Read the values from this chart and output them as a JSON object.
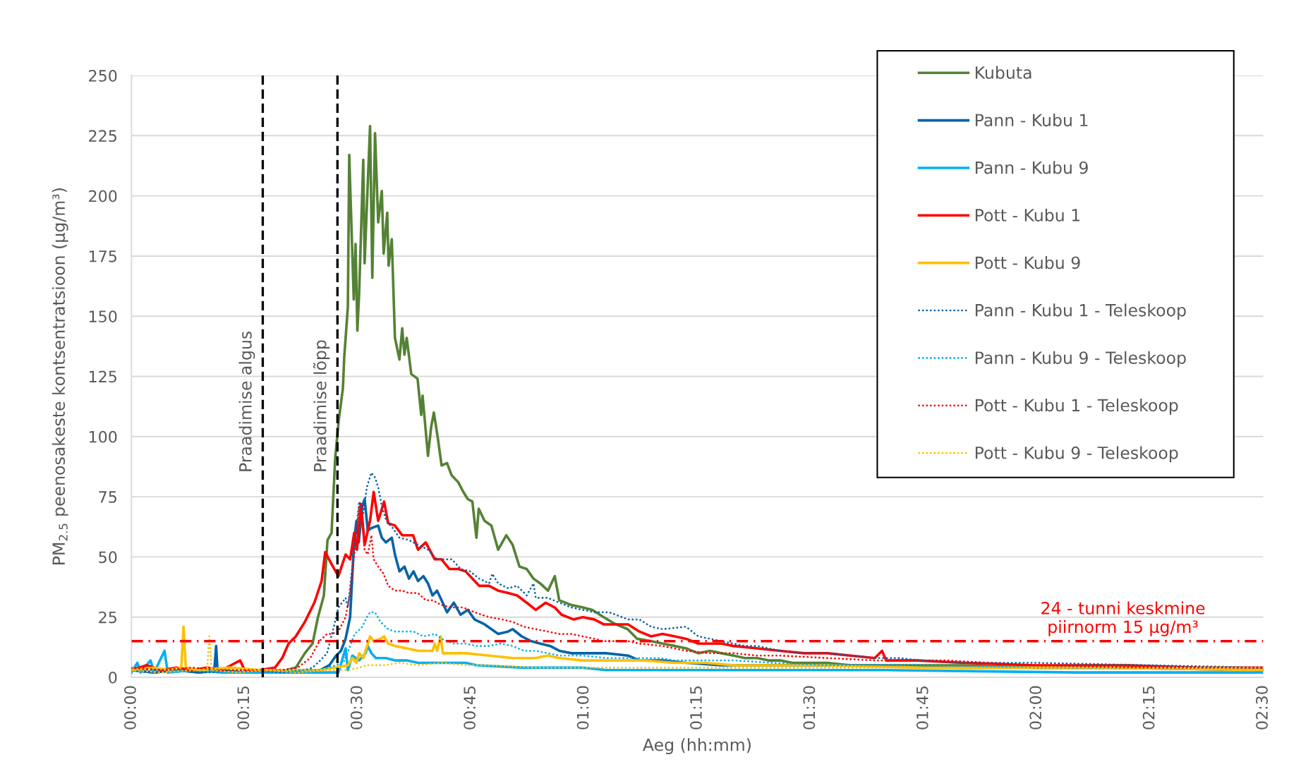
{
  "chart_data": {
    "type": "line",
    "xlabel": "Aeg (hh:mm)",
    "ylabel": "PM$_{2.5}$ peenosakeste kontsentratsioon (µg/m³)",
    "xlim": [
      0,
      2.5
    ],
    "ylim": [
      0,
      250
    ],
    "xticks": [
      {
        "value": 0,
        "label": "00:00"
      },
      {
        "value": 0.25,
        "label": "00:15"
      },
      {
        "value": 0.5,
        "label": "00:30"
      },
      {
        "value": 0.75,
        "label": "00:45"
      },
      {
        "value": 1,
        "label": "01:00"
      },
      {
        "value": 1.25,
        "label": "01:15"
      },
      {
        "value": 1.5,
        "label": "01:30"
      },
      {
        "value": 1.75,
        "label": "01:45"
      },
      {
        "value": 2,
        "label": "02:00"
      },
      {
        "value": 2.25,
        "label": "02:15"
      },
      {
        "value": 2.5,
        "label": "02:30"
      }
    ],
    "yticks": [
      0,
      25,
      50,
      75,
      100,
      125,
      150,
      175,
      200,
      225,
      250
    ],
    "grid": "y",
    "legend": "top right",
    "marker": "none",
    "ref_lines": [
      {
        "axis": "x",
        "value": 0.29,
        "label": "Praadimise algus",
        "color": "#000000",
        "line_style": "dashed"
      },
      {
        "axis": "x",
        "value": 0.455,
        "label": "Praadimise lõpp",
        "color": "#000000",
        "line_style": "dashed"
      },
      {
        "axis": "y",
        "value": 15,
        "label": "24 - tunni keskmine\npiirnorm 15 µg/m³",
        "color": "#ff0000",
        "line_style": "dashdot"
      }
    ],
    "series": [
      {
        "name": "Kubuta",
        "color": "#548235",
        "line_style": "solid",
        "x": [
          0,
          0.05,
          0.1,
          0.15,
          0.2,
          0.25,
          0.3,
          0.342,
          0.363,
          0.383,
          0.4,
          0.412,
          0.425,
          0.433,
          0.442,
          0.45,
          0.458,
          0.467,
          0.47,
          0.478,
          0.481,
          0.491,
          0.495,
          0.499,
          0.503,
          0.512,
          0.515,
          0.527,
          0.532,
          0.538,
          0.545,
          0.553,
          0.557,
          0.565,
          0.568,
          0.575,
          0.582,
          0.592,
          0.598,
          0.603,
          0.608,
          0.618,
          0.632,
          0.64,
          0.643,
          0.655,
          0.662,
          0.668,
          0.677,
          0.685,
          0.697,
          0.707,
          0.722,
          0.733,
          0.743,
          0.753,
          0.762,
          0.767,
          0.78,
          0.795,
          0.81,
          0.828,
          0.842,
          0.857,
          0.873,
          0.888,
          0.903,
          0.92,
          0.935,
          0.945,
          0.972,
          0.997,
          1.018,
          1.043,
          1.07,
          1.096,
          1.117,
          1.148,
          1.173,
          1.2,
          1.225,
          1.252,
          1.278,
          1.303,
          1.33,
          1.355,
          1.382,
          1.407,
          1.433,
          1.46,
          1.485,
          1.537,
          1.588,
          1.667,
          1.833,
          2.0,
          2.25,
          2.5
        ],
        "values": [
          3,
          2,
          3,
          2,
          3,
          2,
          2,
          3,
          4,
          10,
          14,
          25,
          34,
          57,
          60,
          91,
          107,
          120,
          133,
          154,
          217,
          157,
          180,
          144,
          160,
          215,
          172,
          229,
          166,
          226,
          189,
          202,
          176,
          193,
          171,
          182,
          141,
          132,
          145,
          134,
          141,
          126,
          124,
          109,
          117,
          92,
          104,
          110,
          99,
          88,
          89,
          84,
          81,
          77,
          74,
          73,
          58,
          70,
          65,
          63,
          53,
          59,
          55,
          46,
          45,
          41,
          39,
          36,
          42,
          32,
          30,
          29,
          28,
          25,
          22,
          20,
          16,
          15,
          14,
          13,
          12,
          10,
          11,
          10,
          9,
          8,
          8,
          7,
          7,
          6,
          6,
          6,
          5,
          5,
          5,
          4,
          4,
          3
        ]
      },
      {
        "name": "Pann - Kubu 1",
        "color": "#0563a8",
        "line_style": "solid",
        "x": [
          0,
          0.05,
          0.1,
          0.15,
          0.183,
          0.187,
          0.19,
          0.233,
          0.3,
          0.367,
          0.417,
          0.437,
          0.452,
          0.463,
          0.473,
          0.483,
          0.492,
          0.497,
          0.502,
          0.51,
          0.515,
          0.522,
          0.53,
          0.545,
          0.553,
          0.562,
          0.575,
          0.582,
          0.592,
          0.603,
          0.613,
          0.623,
          0.633,
          0.645,
          0.655,
          0.665,
          0.675,
          0.685,
          0.697,
          0.712,
          0.727,
          0.743,
          0.758,
          0.78,
          0.795,
          0.81,
          0.832,
          0.842,
          0.862,
          0.883,
          0.903,
          0.925,
          0.945,
          0.972,
          0.997,
          1.048,
          1.097,
          1.122,
          1.173,
          1.225,
          1.303,
          1.417,
          1.583,
          1.833,
          2.167,
          2.5
        ],
        "values": [
          3,
          2,
          3,
          2,
          3,
          13,
          3,
          2,
          2,
          2,
          3,
          5,
          9,
          11,
          16,
          25,
          57,
          65,
          56,
          71,
          74,
          61,
          62,
          63,
          58,
          56,
          58,
          51,
          44,
          46,
          41,
          44,
          40,
          42,
          39,
          34,
          36,
          32,
          27,
          31,
          26,
          28,
          24,
          22,
          20,
          18,
          19,
          20,
          17,
          15,
          14,
          13,
          11,
          10,
          10,
          10,
          9,
          7,
          7,
          6,
          5,
          5,
          5,
          4,
          4,
          3
        ]
      },
      {
        "name": "Pann - Kubu 9",
        "color": "#00b0f0",
        "line_style": "solid",
        "x": [
          0,
          0.013,
          0.02,
          0.042,
          0.05,
          0.073,
          0.08,
          0.133,
          0.2,
          0.267,
          0.333,
          0.4,
          0.457,
          0.473,
          0.478,
          0.488,
          0.503,
          0.517,
          0.522,
          0.53,
          0.54,
          0.562,
          0.582,
          0.608,
          0.633,
          0.66,
          0.685,
          0.738,
          0.763,
          0.867,
          0.997,
          1.048,
          1.333,
          1.667,
          2.083,
          2.5
        ],
        "values": [
          2,
          6,
          2,
          7,
          2,
          11,
          2,
          3,
          2,
          2,
          2,
          2,
          2,
          12,
          3,
          9,
          7,
          10,
          13,
          10,
          8,
          8,
          7,
          7,
          6,
          6,
          6,
          6,
          5,
          4,
          4,
          3,
          3,
          3,
          2,
          2
        ]
      },
      {
        "name": "Pott - Kubu 1",
        "color": "#ff0000",
        "line_style": "solid",
        "x": [
          0,
          0.033,
          0.067,
          0.1,
          0.133,
          0.167,
          0.2,
          0.24,
          0.25,
          0.283,
          0.317,
          0.333,
          0.347,
          0.363,
          0.383,
          0.404,
          0.42,
          0.428,
          0.442,
          0.457,
          0.473,
          0.483,
          0.492,
          0.498,
          0.507,
          0.515,
          0.527,
          0.535,
          0.545,
          0.558,
          0.567,
          0.582,
          0.598,
          0.622,
          0.633,
          0.65,
          0.67,
          0.685,
          0.702,
          0.722,
          0.738,
          0.753,
          0.768,
          0.79,
          0.81,
          0.832,
          0.852,
          0.873,
          0.893,
          0.915,
          0.935,
          0.95,
          0.977,
          0.997,
          1.023,
          1.043,
          1.07,
          1.097,
          1.122,
          1.148,
          1.173,
          1.2,
          1.225,
          1.252,
          1.278,
          1.303,
          1.33,
          1.382,
          1.433,
          1.485,
          1.537,
          1.588,
          1.642,
          1.658,
          1.667,
          1.735,
          1.838,
          1.993,
          2.202,
          2.358,
          2.5
        ],
        "values": [
          3,
          5,
          3,
          4,
          3,
          4,
          3,
          7,
          3,
          3,
          4,
          8,
          14,
          17,
          23,
          31,
          40,
          52,
          47,
          42,
          51,
          49,
          60,
          53,
          72,
          55,
          65,
          77,
          65,
          73,
          64,
          63,
          59,
          59,
          53,
          56,
          49,
          49,
          45,
          45,
          44,
          41,
          38,
          38,
          36,
          35,
          34,
          31,
          28,
          31,
          29,
          26,
          24,
          25,
          24,
          22,
          22,
          22,
          19,
          17,
          18,
          17,
          16,
          14,
          14,
          14,
          13,
          12,
          11,
          10,
          10,
          9,
          8,
          11,
          7,
          7,
          6,
          5,
          5,
          4,
          4
        ]
      },
      {
        "name": "Pott - Kubu 9",
        "color": "#ffc000",
        "line_style": "solid",
        "x": [
          0,
          0.05,
          0.083,
          0.11,
          0.115,
          0.12,
          0.15,
          0.217,
          0.283,
          0.35,
          0.417,
          0.478,
          0.488,
          0.497,
          0.503,
          0.512,
          0.527,
          0.535,
          0.55,
          0.558,
          0.567,
          0.582,
          0.608,
          0.633,
          0.665,
          0.67,
          0.675,
          0.683,
          0.688,
          0.738,
          0.79,
          0.842,
          0.893,
          0.92,
          0.945,
          0.997,
          1.048,
          1.133,
          1.2,
          1.267,
          1.333,
          1.533,
          1.75,
          2.167,
          2.5
        ],
        "values": [
          3,
          4,
          3,
          4,
          21,
          4,
          3,
          4,
          3,
          3,
          3,
          5,
          8,
          6,
          10,
          8,
          17,
          15,
          16,
          17,
          14,
          13,
          12,
          11,
          11,
          14,
          11,
          17,
          10,
          10,
          9,
          8,
          8,
          9,
          8,
          7,
          7,
          7,
          6,
          6,
          5,
          5,
          4,
          4,
          3
        ]
      },
      {
        "name": "Pann - Kubu 1 - Teleskoop",
        "color": "#0563a8",
        "line_style": "dotted",
        "x": [
          0,
          0.083,
          0.167,
          0.25,
          0.333,
          0.383,
          0.4,
          0.417,
          0.432,
          0.447,
          0.457,
          0.473,
          0.478,
          0.493,
          0.503,
          0.512,
          0.52,
          0.53,
          0.538,
          0.545,
          0.553,
          0.563,
          0.577,
          0.592,
          0.613,
          0.633,
          0.655,
          0.675,
          0.708,
          0.727,
          0.748,
          0.768,
          0.79,
          0.797,
          0.81,
          0.832,
          0.852,
          0.873,
          0.888,
          0.893,
          0.92,
          0.945,
          0.972,
          0.997,
          1.023,
          1.055,
          1.07,
          1.097,
          1.122,
          1.148,
          1.173,
          1.225,
          1.252,
          1.278,
          1.303,
          1.33,
          1.355,
          1.382,
          1.433,
          1.485,
          1.537,
          1.588,
          1.642,
          1.693,
          1.745,
          1.833,
          2.0,
          2.25,
          2.5
        ],
        "values": [
          3,
          3,
          2,
          3,
          2,
          3,
          4,
          7,
          10,
          21,
          29,
          33,
          29,
          55,
          73,
          68,
          79,
          85,
          83,
          79,
          71,
          65,
          62,
          58,
          57,
          55,
          53,
          49,
          49,
          45,
          44,
          41,
          39,
          43,
          39,
          37,
          38,
          34,
          39,
          33,
          33,
          31,
          29,
          28,
          27,
          27,
          26,
          24,
          24,
          21,
          20,
          21,
          17,
          16,
          15,
          14,
          13,
          13,
          11,
          10,
          10,
          9,
          8,
          8,
          7,
          6,
          6,
          5,
          4
        ]
      },
      {
        "name": "Pann - Kubu 9 - Teleskoop",
        "color": "#00b0f0",
        "line_style": "dotted",
        "x": [
          0,
          0.083,
          0.167,
          0.25,
          0.333,
          0.417,
          0.468,
          0.483,
          0.493,
          0.51,
          0.52,
          0.527,
          0.538,
          0.55,
          0.567,
          0.582,
          0.603,
          0.623,
          0.645,
          0.67,
          0.685,
          0.712,
          0.738,
          0.763,
          0.79,
          0.815,
          0.842,
          0.867,
          0.893,
          0.92,
          0.945,
          0.997,
          1.048,
          1.167,
          1.2,
          1.333,
          1.417,
          1.533,
          1.75,
          2.0,
          2.5
        ],
        "values": [
          3,
          2,
          3,
          2,
          3,
          3,
          6,
          13,
          18,
          21,
          25,
          27,
          27,
          23,
          20,
          19,
          19,
          19,
          17,
          18,
          16,
          14,
          14,
          13,
          13,
          14,
          13,
          11,
          11,
          10,
          9,
          9,
          8,
          8,
          7,
          7,
          6,
          5,
          5,
          4,
          4
        ]
      },
      {
        "name": "Pott - Kubu 1 - Teleskoop",
        "color": "#ff0000",
        "line_style": "dotted",
        "x": [
          0,
          0.067,
          0.133,
          0.2,
          0.267,
          0.333,
          0.367,
          0.395,
          0.415,
          0.432,
          0.442,
          0.457,
          0.473,
          0.483,
          0.493,
          0.503,
          0.51,
          0.515,
          0.522,
          0.53,
          0.535,
          0.545,
          0.557,
          0.567,
          0.582,
          0.598,
          0.613,
          0.633,
          0.65,
          0.665,
          0.685,
          0.707,
          0.733,
          0.758,
          0.79,
          0.82,
          0.842,
          0.867,
          0.893,
          0.92,
          0.945,
          0.972,
          0.997,
          1.023,
          1.043,
          1.097,
          1.122,
          1.173,
          1.225,
          1.278,
          1.33,
          1.382,
          1.433,
          1.537,
          1.642,
          1.797,
          2.0,
          2.25,
          2.5
        ],
        "values": [
          4,
          3,
          4,
          3,
          3,
          3,
          4,
          8,
          15,
          18,
          18,
          19,
          25,
          35,
          53,
          71,
          65,
          53,
          51,
          59,
          49,
          46,
          43,
          38,
          36,
          36,
          35,
          35,
          32,
          32,
          30,
          29,
          29,
          27,
          25,
          24,
          23,
          21,
          20,
          19,
          18,
          18,
          17,
          16,
          15,
          15,
          14,
          13,
          11,
          10,
          10,
          9,
          9,
          8,
          7,
          7,
          5,
          4,
          4
        ]
      },
      {
        "name": "Pott - Kubu 9 - Teleskoop",
        "color": "#ffc000",
        "line_style": "dotted",
        "x": [
          0,
          0.067,
          0.133,
          0.167,
          0.172,
          0.177,
          0.233,
          0.3,
          0.367,
          0.433,
          0.478,
          0.503,
          0.52,
          0.557,
          0.592,
          0.633,
          0.685,
          0.738,
          0.79,
          0.893,
          0.997,
          1.333,
          1.833,
          2.5
        ],
        "values": [
          3,
          2,
          3,
          3,
          17,
          3,
          2,
          3,
          2,
          3,
          3,
          4,
          5,
          5,
          6,
          5,
          6,
          5,
          5,
          4,
          4,
          4,
          4,
          4
        ]
      }
    ]
  }
}
